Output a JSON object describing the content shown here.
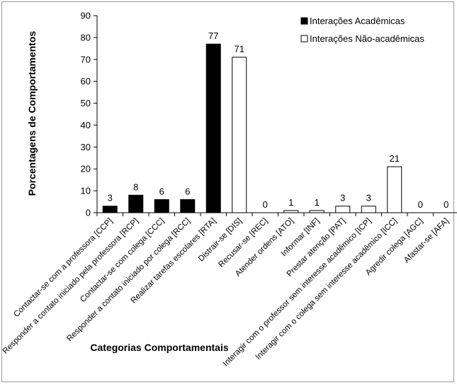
{
  "chart_data": {
    "type": "bar",
    "ylabel": "Porcentagens de Comportamentos",
    "xlabel": "Categorias Comportamentais",
    "ylim": [
      0,
      90
    ],
    "yticks": [
      0,
      10,
      20,
      30,
      40,
      50,
      60,
      70,
      80,
      90
    ],
    "grid": false,
    "legend_position": "top-right",
    "series": [
      {
        "name": "Interações Acadêmicas",
        "color": "#000000",
        "fill": "solid"
      },
      {
        "name": "Interações Não-acadêmicas",
        "color": "#ffffff",
        "fill": "outline"
      }
    ],
    "categories": [
      "Contactar-se com a professora [CCP]",
      "Responder a contato iniciado pela professora [RCP]",
      "Contactar-se com colega [CCC]",
      "Responder a contato iniciado por colega [RCC]",
      "Realizar tarefas escolares [RTA]",
      "Distrair-se [DIS]",
      "Recusar-se [REC]",
      "Atender ordens [ATO]",
      "Informar [INF]",
      "Prestar atenção [PAT]",
      "Interagir com o professor sem interesse acadêmico [ICP]",
      "Interagir com o colega sem interesse acadêmico [ICC]",
      "Agredir colega [AGC]",
      "Afastar-se [AFA]"
    ],
    "values": [
      3,
      8,
      6,
      6,
      77,
      71,
      0,
      1,
      1,
      3,
      3,
      21,
      0,
      0
    ],
    "series_index": [
      0,
      0,
      0,
      0,
      0,
      1,
      1,
      1,
      1,
      1,
      1,
      1,
      1,
      1
    ],
    "value_labels": [
      "3",
      "8",
      "6",
      "6",
      "77",
      "71",
      "0",
      "1",
      "1",
      "3",
      "3",
      "21",
      "0",
      "0"
    ]
  }
}
